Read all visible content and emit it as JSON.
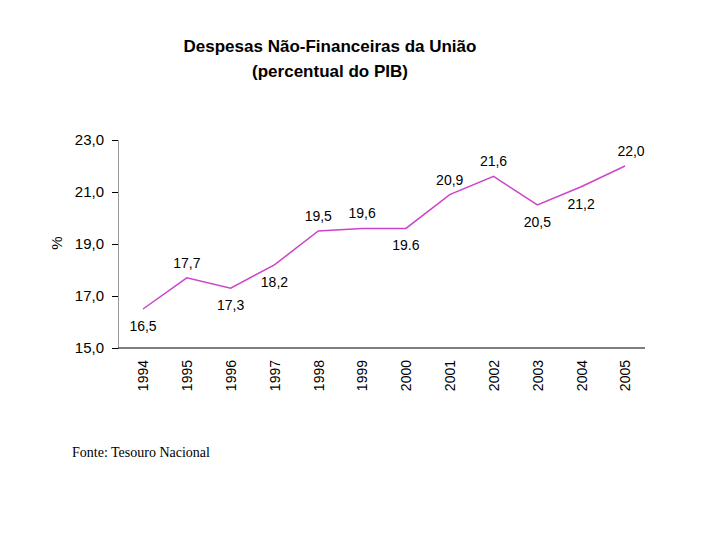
{
  "chart_data": {
    "type": "line",
    "title": "Despesas Não-Financeiras da União",
    "subtitle": "(percentual do PIB)",
    "y_label": "%",
    "source": "Fonte: Tesouro Nacional",
    "categories": [
      "1994",
      "1995",
      "1996",
      "1997",
      "1998",
      "1999",
      "2000",
      "2001",
      "2002",
      "2003",
      "2004",
      "2005"
    ],
    "values": [
      16.5,
      17.7,
      17.3,
      18.2,
      19.5,
      19.6,
      19.6,
      20.9,
      21.6,
      20.5,
      21.2,
      22.0
    ],
    "value_labels": [
      "16,5",
      "17,7",
      "17,3",
      "18,2",
      "19,5",
      "19,6",
      "19.6",
      "20,9",
      "21,6",
      "20,5",
      "21,2",
      "22,0"
    ],
    "color": "#cc44cc",
    "ylim": [
      15,
      23
    ],
    "yticks": [
      {
        "value": 15,
        "label": "15,0"
      },
      {
        "value": 17,
        "label": "17,0"
      },
      {
        "value": 19,
        "label": "19,0"
      },
      {
        "value": 21,
        "label": "21,0"
      },
      {
        "value": 23,
        "label": "23,0"
      }
    ],
    "grid": false,
    "data_labels": true
  }
}
